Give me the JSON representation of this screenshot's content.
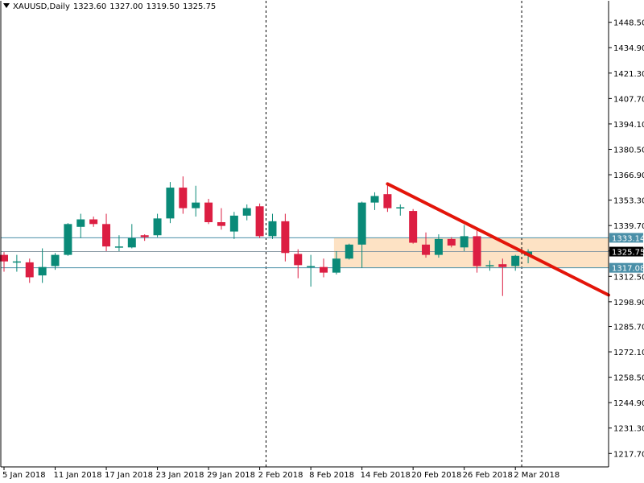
{
  "header": {
    "symbol": "XAUUSD,Daily",
    "open": "1323.60",
    "high": "1327.00",
    "low": "1319.50",
    "close": "1325.75"
  },
  "chart_data": {
    "type": "candlestick",
    "symbol": "XAUUSD",
    "timeframe": "Daily",
    "ylim": [
      1210.5,
      1460
    ],
    "y_ticks": [
      "1448.50",
      "1434.90",
      "1421.30",
      "1407.70",
      "1394.10",
      "1380.50",
      "1366.90",
      "1353.30",
      "1339.70",
      "1326.10",
      "1312.50",
      "1298.90",
      "1285.70",
      "1272.10",
      "1258.50",
      "1244.90",
      "1231.30",
      "1217.70"
    ],
    "x_ticks": [
      "5 Jan 2018",
      "11 Jan 2018",
      "17 Jan 2018",
      "23 Jan 2018",
      "29 Jan 2018",
      "2 Feb 2018",
      "8 Feb 2018",
      "14 Feb 2018",
      "20 Feb 2018",
      "26 Feb 2018",
      "2 Mar 2018"
    ],
    "candles": [
      {
        "o": 1324.0,
        "h": 1325.5,
        "l": 1315.0,
        "c": 1320.5
      },
      {
        "o": 1320.0,
        "h": 1324.0,
        "l": 1315.0,
        "c": 1320.5
      },
      {
        "o": 1320.0,
        "h": 1322.0,
        "l": 1309.0,
        "c": 1312.0
      },
      {
        "o": 1313.0,
        "h": 1327.5,
        "l": 1309.0,
        "c": 1317.5
      },
      {
        "o": 1318.0,
        "h": 1325.0,
        "l": 1316.0,
        "c": 1324.0
      },
      {
        "o": 1324.0,
        "h": 1341.0,
        "l": 1323.5,
        "c": 1340.5
      },
      {
        "o": 1339.0,
        "h": 1346.0,
        "l": 1333.0,
        "c": 1343.0
      },
      {
        "o": 1343.0,
        "h": 1344.5,
        "l": 1339.0,
        "c": 1340.5
      },
      {
        "o": 1340.5,
        "h": 1346.0,
        "l": 1326.0,
        "c": 1328.5
      },
      {
        "o": 1328.5,
        "h": 1334.5,
        "l": 1326.0,
        "c": 1328.5
      },
      {
        "o": 1328.0,
        "h": 1340.5,
        "l": 1327.5,
        "c": 1333.0
      },
      {
        "o": 1334.5,
        "h": 1335.0,
        "l": 1331.5,
        "c": 1333.5
      },
      {
        "o": 1334.5,
        "h": 1346.0,
        "l": 1333.5,
        "c": 1343.5
      },
      {
        "o": 1343.5,
        "h": 1363.0,
        "l": 1341.0,
        "c": 1360.0
      },
      {
        "o": 1360.0,
        "h": 1366.0,
        "l": 1346.0,
        "c": 1349.0
      },
      {
        "o": 1349.0,
        "h": 1361.0,
        "l": 1344.5,
        "c": 1352.0
      },
      {
        "o": 1352.0,
        "h": 1354.0,
        "l": 1340.5,
        "c": 1341.5
      },
      {
        "o": 1341.5,
        "h": 1349.0,
        "l": 1337.5,
        "c": 1339.5
      },
      {
        "o": 1336.5,
        "h": 1347.0,
        "l": 1332.5,
        "c": 1345.0
      },
      {
        "o": 1345.0,
        "h": 1351.0,
        "l": 1342.5,
        "c": 1349.0
      },
      {
        "o": 1350.0,
        "h": 1351.5,
        "l": 1333.0,
        "c": 1334.0
      },
      {
        "o": 1334.0,
        "h": 1346.0,
        "l": 1332.5,
        "c": 1342.0
      },
      {
        "o": 1342.0,
        "h": 1346.0,
        "l": 1320.5,
        "c": 1325.0
      },
      {
        "o": 1324.5,
        "h": 1327.0,
        "l": 1311.5,
        "c": 1318.5
      },
      {
        "o": 1317.5,
        "h": 1324.0,
        "l": 1307.0,
        "c": 1318.0
      },
      {
        "o": 1317.5,
        "h": 1322.0,
        "l": 1312.0,
        "c": 1314.5
      },
      {
        "o": 1314.5,
        "h": 1326.0,
        "l": 1313.5,
        "c": 1322.0
      },
      {
        "o": 1322.0,
        "h": 1330.0,
        "l": 1321.5,
        "c": 1329.5
      },
      {
        "o": 1329.5,
        "h": 1352.5,
        "l": 1317.0,
        "c": 1352.0
      },
      {
        "o": 1352.0,
        "h": 1357.5,
        "l": 1348.0,
        "c": 1355.5
      },
      {
        "o": 1356.5,
        "h": 1362.0,
        "l": 1347.0,
        "c": 1349.0
      },
      {
        "o": 1349.5,
        "h": 1351.0,
        "l": 1345.0,
        "c": 1349.5
      },
      {
        "o": 1347.5,
        "h": 1348.5,
        "l": 1330.0,
        "c": 1330.5
      },
      {
        "o": 1329.5,
        "h": 1336.0,
        "l": 1322.5,
        "c": 1324.0
      },
      {
        "o": 1324.0,
        "h": 1335.0,
        "l": 1322.5,
        "c": 1332.5
      },
      {
        "o": 1332.5,
        "h": 1333.5,
        "l": 1328.0,
        "c": 1329.0
      },
      {
        "o": 1328.0,
        "h": 1340.0,
        "l": 1326.0,
        "c": 1334.0
      },
      {
        "o": 1334.0,
        "h": 1337.0,
        "l": 1314.5,
        "c": 1318.0
      },
      {
        "o": 1318.0,
        "h": 1321.0,
        "l": 1315.5,
        "c": 1318.5
      },
      {
        "o": 1319.0,
        "h": 1322.0,
        "l": 1302.0,
        "c": 1317.5
      },
      {
        "o": 1318.0,
        "h": 1324.0,
        "l": 1315.5,
        "c": 1323.5
      },
      {
        "o": 1323.6,
        "h": 1327.0,
        "l": 1319.5,
        "c": 1325.75
      }
    ],
    "horizontal_lines": [
      {
        "value": 1333.14,
        "label": "1333.14",
        "color": "#4a8fa8"
      },
      {
        "value": 1317.08,
        "label": "1317.08",
        "color": "#4a8fa8"
      },
      {
        "value": 1325.75,
        "label": "1325.75",
        "color": "#8a9aa5",
        "current": true
      }
    ],
    "zone": {
      "from": 1317.08,
      "to": 1333.14,
      "start_candle": 26,
      "color": "#fde2c4"
    },
    "trendline": {
      "from_candle": 30,
      "from_price": 1362.0,
      "to_price_at_right_edge": 1302.5,
      "color": "#e3150a"
    },
    "period_separators": [
      "2 Feb 2018",
      "2 Mar 2018"
    ],
    "colors": {
      "bull": "#0a8a78",
      "bear": "#dc1e42",
      "axis": "#000000",
      "grid_sep": "#000000"
    }
  }
}
